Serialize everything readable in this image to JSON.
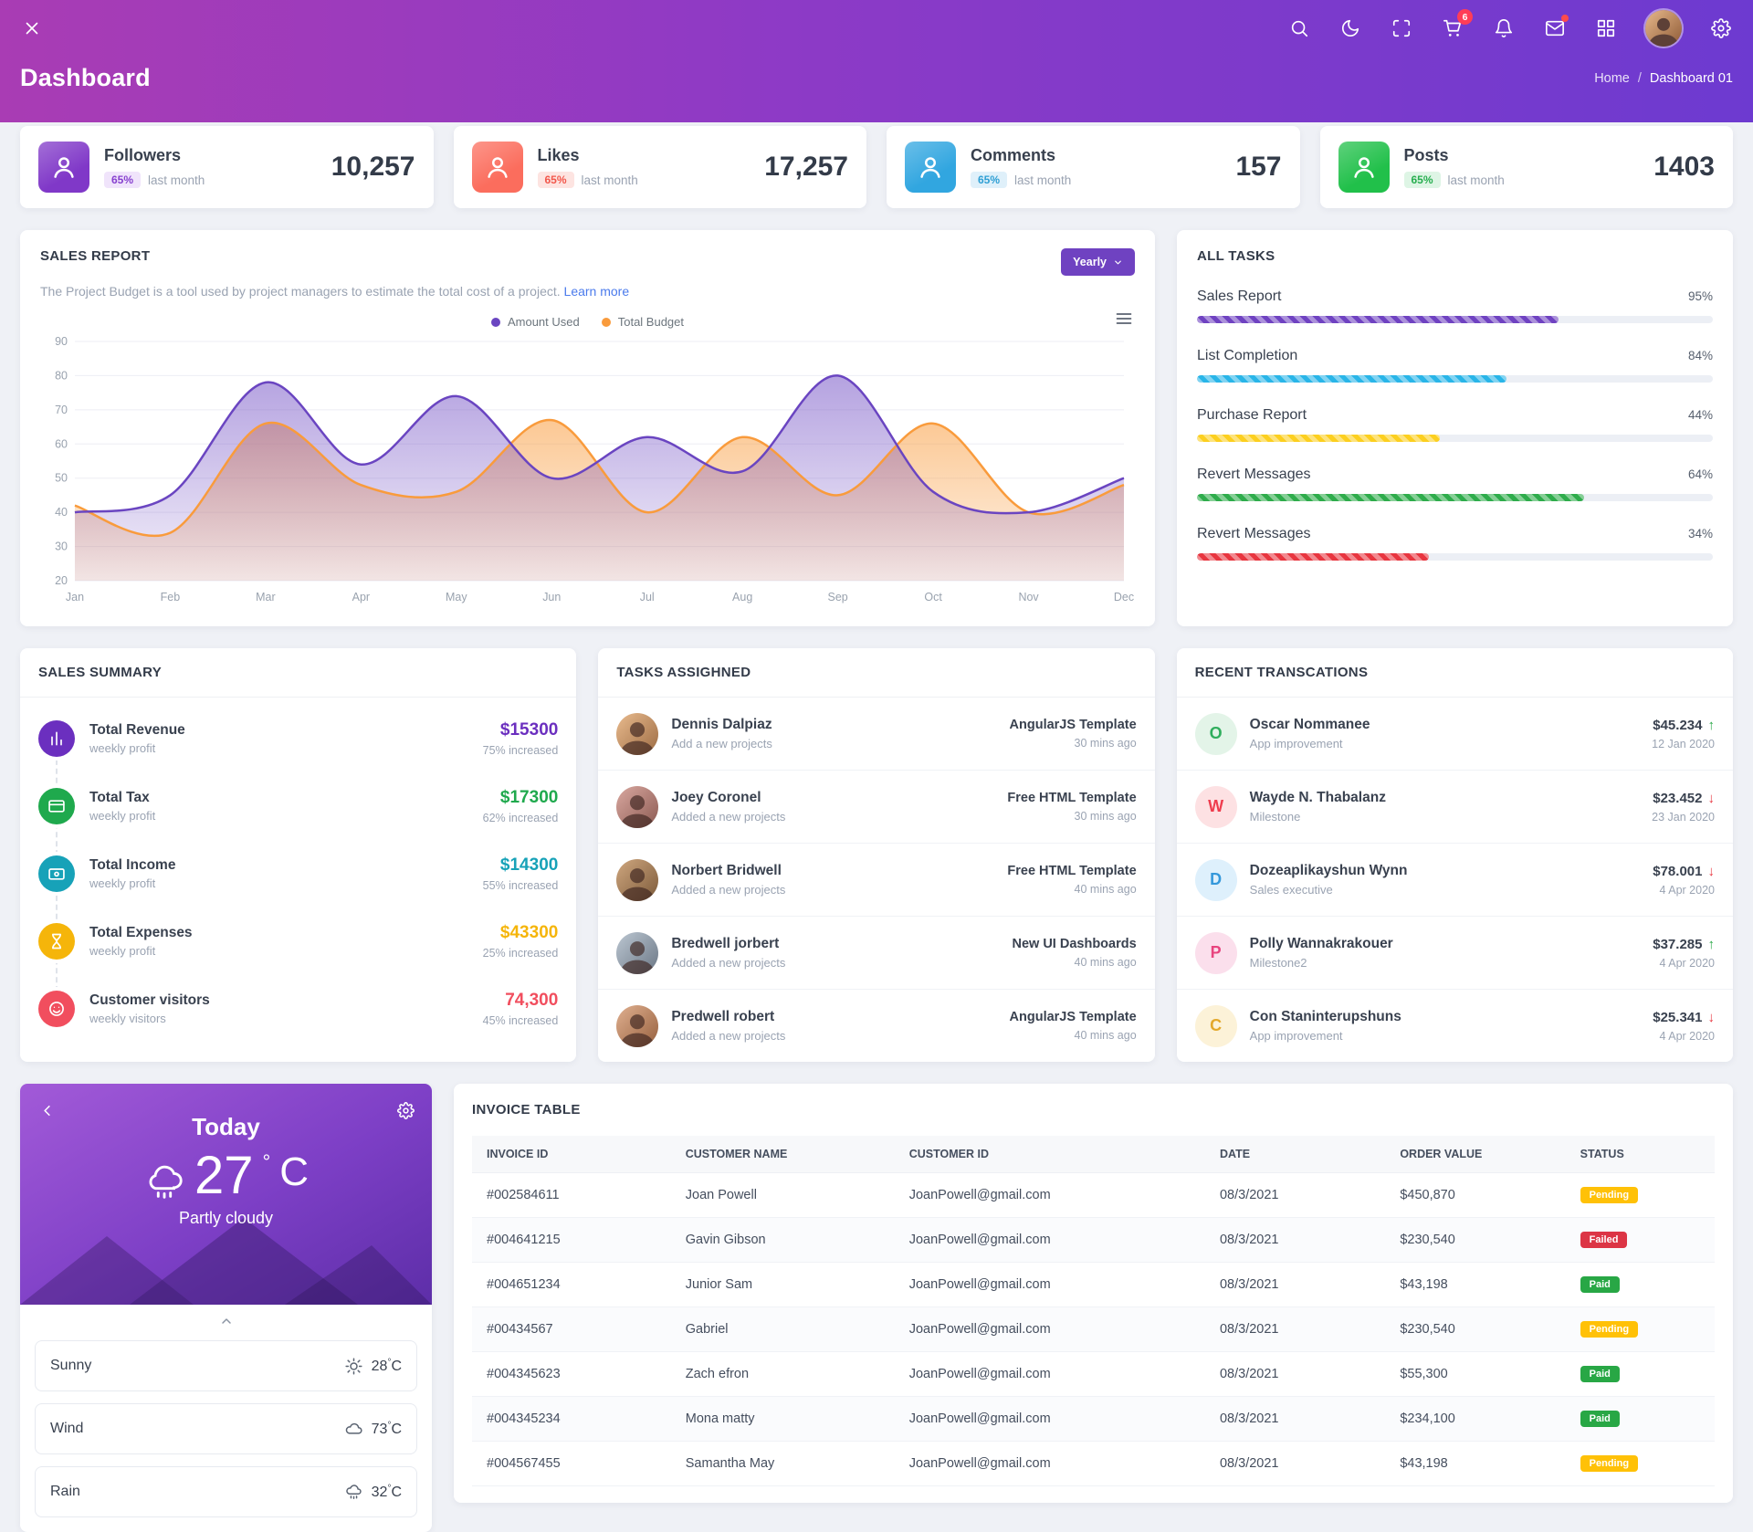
{
  "navbar": {
    "cart_badge": "6",
    "icon_names": [
      "close-icon",
      "search-icon",
      "dark-mode-icon",
      "fullscreen-icon",
      "cart-icon",
      "bell-icon",
      "mail-icon",
      "apps-grid-icon",
      "user-avatar",
      "settings-icon"
    ]
  },
  "page_header": {
    "title": "Dashboard",
    "breadcrumb_home": "Home",
    "breadcrumb_separator": "/",
    "breadcrumb_current": "Dashboard 01"
  },
  "stats": [
    {
      "title": "Followers",
      "badge": "65%",
      "period": "last month",
      "value": "10,257",
      "color": "#8038c8"
    },
    {
      "title": "Likes",
      "badge": "65%",
      "period": "last month",
      "value": "17,257",
      "color": "#fb6d5d"
    },
    {
      "title": "Comments",
      "badge": "65%",
      "period": "last month",
      "value": "157",
      "color": "#31a6e0"
    },
    {
      "title": "Posts",
      "badge": "65%",
      "period": "last month",
      "value": "1403",
      "color": "#21c04a"
    }
  ],
  "sales_report": {
    "title": "SALES REPORT",
    "subtitle": "The Project Budget is a tool used by project managers to estimate the total cost of a project.",
    "learn_more": "Learn more",
    "period_selector": "Yearly"
  },
  "chart_data": {
    "type": "area",
    "title": "Sales Report",
    "categories": [
      "Jan",
      "Feb",
      "Mar",
      "Apr",
      "May",
      "Jun",
      "Jul",
      "Aug",
      "Sep",
      "Oct",
      "Nov",
      "Dec"
    ],
    "series": [
      {
        "name": "Amount Used",
        "color": "#6a45c1",
        "values": [
          40,
          45,
          78,
          54,
          74,
          50,
          62,
          52,
          80,
          46,
          40,
          50
        ]
      },
      {
        "name": "Total Budget",
        "color": "#f99b3c",
        "values": [
          42,
          34,
          66,
          48,
          46,
          67,
          40,
          62,
          45,
          66,
          40,
          48
        ]
      }
    ],
    "ylim": [
      20,
      90
    ],
    "yticks": [
      20,
      30,
      40,
      50,
      60,
      70,
      80,
      90
    ],
    "grid": true,
    "legend_position": "top"
  },
  "all_tasks": {
    "title": "ALL TASKS",
    "items": [
      {
        "label": "Sales Report",
        "percent": "95%",
        "color": "#6f42c1",
        "bar_width": "70%"
      },
      {
        "label": "List Completion",
        "percent": "84%",
        "color": "#29b5e8",
        "bar_width": "60%"
      },
      {
        "label": "Purchase Report",
        "percent": "44%",
        "color": "#fccf1f",
        "bar_width": "47%"
      },
      {
        "label": "Revert Messages",
        "percent": "64%",
        "color": "#2eac4b",
        "bar_width": "75%"
      },
      {
        "label": "Revert Messages",
        "percent": "34%",
        "color": "#e8353f",
        "bar_width": "45%"
      }
    ]
  },
  "sales_summary": {
    "title": "SALES SUMMARY",
    "items": [
      {
        "icon": "bar-chart-icon",
        "title": "Total Revenue",
        "subtitle": "weekly profit",
        "value": "$15300",
        "change": "75% increased",
        "color": "#6b2fbf"
      },
      {
        "icon": "credit-card-icon",
        "title": "Total Tax",
        "subtitle": "weekly profit",
        "value": "$17300",
        "change": "62% increased",
        "color": "#1fa94d"
      },
      {
        "icon": "wallet-icon",
        "title": "Total Income",
        "subtitle": "weekly profit",
        "value": "$14300",
        "change": "55% increased",
        "color": "#17a2b8"
      },
      {
        "icon": "hourglass-icon",
        "title": "Total Expenses",
        "subtitle": "weekly profit",
        "value": "$43300",
        "change": "25% increased",
        "color": "#f5b50a"
      },
      {
        "icon": "smiley-icon",
        "title": "Customer visitors",
        "subtitle": "weekly visitors",
        "value": "74,300",
        "change": "45% increased",
        "color": "#f14e5e"
      }
    ]
  },
  "tasks_assigned": {
    "title": "TASKS ASSIGHNED",
    "items": [
      {
        "name": "Dennis Dalpiaz",
        "subtitle": "Add a new projects",
        "project": "AngularJS Template",
        "time": "30 mins ago"
      },
      {
        "name": "Joey Coronel",
        "subtitle": "Added a new projects",
        "project": "Free HTML Template",
        "time": "30 mins ago"
      },
      {
        "name": "Norbert Bridwell",
        "subtitle": "Added a new projects",
        "project": "Free HTML Template",
        "time": "40 mins ago"
      },
      {
        "name": "Bredwell jorbert",
        "subtitle": "Added a new projects",
        "project": "New UI Dashboards",
        "time": "40 mins ago"
      },
      {
        "name": "Predwell robert",
        "subtitle": "Added a new projects",
        "project": "AngularJS Template",
        "time": "40 mins ago"
      }
    ]
  },
  "transactions": {
    "title": "RECENT TRANSCATIONS",
    "items": [
      {
        "initial": "O",
        "name": "Oscar Nommanee",
        "subtitle": "App improvement",
        "amount": "$45.234",
        "arrow": "↑",
        "arrow_color": "#28a745",
        "date": "12 Jan 2020",
        "color": "#2fae5d",
        "bg": "#e3f4e8"
      },
      {
        "initial": "W",
        "name": "Wayde N. Thabalanz",
        "subtitle": "Milestone",
        "amount": "$23.452",
        "arrow": "↓",
        "arrow_color": "#e8353f",
        "date": "23 Jan 2020",
        "color": "#ef3c4e",
        "bg": "#fde1e3"
      },
      {
        "initial": "D",
        "name": "Dozeaplikayshun Wynn",
        "subtitle": "Sales executive",
        "amount": "$78.001",
        "arrow": "↓",
        "arrow_color": "#e8353f",
        "date": "4 Apr 2020",
        "color": "#3498db",
        "bg": "#def0fc"
      },
      {
        "initial": "P",
        "name": "Polly Wannakrakouer",
        "subtitle": "Milestone2",
        "amount": "$37.285",
        "arrow": "↑",
        "arrow_color": "#28a745",
        "date": "4 Apr 2020",
        "color": "#e8447e",
        "bg": "#fbdfec"
      },
      {
        "initial": "C",
        "name": "Con Staninterupshuns",
        "subtitle": "App improvement",
        "amount": "$25.341",
        "arrow": "↓",
        "arrow_color": "#e8353f",
        "date": "4 Apr 2020",
        "color": "#e3a82b",
        "bg": "#fcf2d8"
      }
    ]
  },
  "weather": {
    "day": "Today",
    "temperature": "27",
    "degree_symbol": "°",
    "temp_unit": "C",
    "condition": "Partly cloudy",
    "main_icon": "cloud-rain-icon",
    "details": [
      {
        "label": "Sunny",
        "icon": "sun-icon",
        "value": "28",
        "unit": "C"
      },
      {
        "label": "Wind",
        "icon": "cloud-icon",
        "value": "73",
        "unit": "C"
      },
      {
        "label": "Rain",
        "icon": "rain-icon",
        "value": "32",
        "unit": "C"
      }
    ]
  },
  "invoice_table": {
    "title": "INVOICE TABLE",
    "columns": [
      "INVOICE ID",
      "CUSTOMER NAME",
      "CUSTOMER ID",
      "DATE",
      "ORDER VALUE",
      "STATUS"
    ],
    "rows": [
      {
        "invoice_id": "#002584611",
        "customer_name": "Joan Powell",
        "customer_id": "JoanPowell@gmail.com",
        "date": "08/3/2021",
        "order_value": "$450,870",
        "status": "Pending",
        "status_color": "#ffc107"
      },
      {
        "invoice_id": "#004641215",
        "customer_name": "Gavin Gibson",
        "customer_id": "JoanPowell@gmail.com",
        "date": "08/3/2021",
        "order_value": "$230,540",
        "status": "Failed",
        "status_color": "#dc3545"
      },
      {
        "invoice_id": "#004651234",
        "customer_name": "Junior Sam",
        "customer_id": "JoanPowell@gmail.com",
        "date": "08/3/2021",
        "order_value": "$43,198",
        "status": "Paid",
        "status_color": "#28a745"
      },
      {
        "invoice_id": "#00434567",
        "customer_name": "Gabriel",
        "customer_id": "JoanPowell@gmail.com",
        "date": "08/3/2021",
        "order_value": "$230,540",
        "status": "Pending",
        "status_color": "#ffc107"
      },
      {
        "invoice_id": "#004345623",
        "customer_name": "Zach efron",
        "customer_id": "JoanPowell@gmail.com",
        "date": "08/3/2021",
        "order_value": "$55,300",
        "status": "Paid",
        "status_color": "#28a745"
      },
      {
        "invoice_id": "#004345234",
        "customer_name": "Mona matty",
        "customer_id": "JoanPowell@gmail.com",
        "date": "08/3/2021",
        "order_value": "$234,100",
        "status": "Paid",
        "status_color": "#28a745"
      },
      {
        "invoice_id": "#004567455",
        "customer_name": "Samantha May",
        "customer_id": "JoanPowell@gmail.com",
        "date": "08/3/2021",
        "order_value": "$43,198",
        "status": "Pending",
        "status_color": "#ffc107"
      }
    ]
  }
}
